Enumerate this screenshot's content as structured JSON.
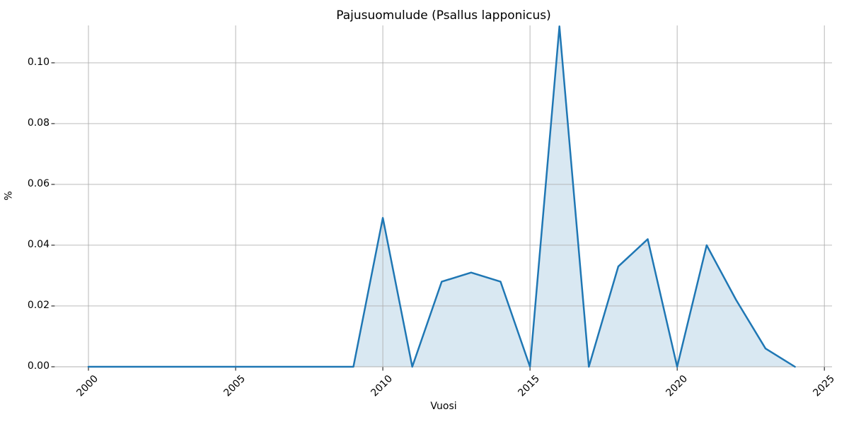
{
  "chart_data": {
    "type": "area",
    "title": "Pajusuomulude (Psallus lapponicus)",
    "xlabel": "Vuosi",
    "ylabel": "%",
    "x": [
      2000,
      2001,
      2002,
      2003,
      2004,
      2005,
      2006,
      2007,
      2008,
      2009,
      2010,
      2011,
      2012,
      2013,
      2014,
      2015,
      2016,
      2017,
      2018,
      2019,
      2020,
      2021,
      2022,
      2023,
      2024
    ],
    "values": [
      0,
      0,
      0,
      0,
      0,
      0,
      0,
      0,
      0,
      0,
      0.049,
      0,
      0.028,
      0.031,
      0.028,
      0,
      0.112,
      0,
      0.033,
      0.042,
      0,
      0.04,
      0.022,
      0.006,
      0
    ],
    "xticks": [
      2000,
      2005,
      2010,
      2015,
      2020,
      2025
    ],
    "yticks": [
      0,
      0.02,
      0.04,
      0.06,
      0.08,
      0.1
    ],
    "ytick_labels": [
      "0.00",
      "0.02",
      "0.04",
      "0.06",
      "0.08",
      "0.10"
    ],
    "xlim": [
      1998.87,
      2025.26
    ],
    "ylim": [
      0,
      0.1123
    ],
    "grid": true,
    "legend": "none",
    "line_color": "#1f77b4",
    "fill_color": "rgba(31,119,180,0.17)",
    "grid_color": "#b0b0b0",
    "tick_color": "#000000"
  }
}
